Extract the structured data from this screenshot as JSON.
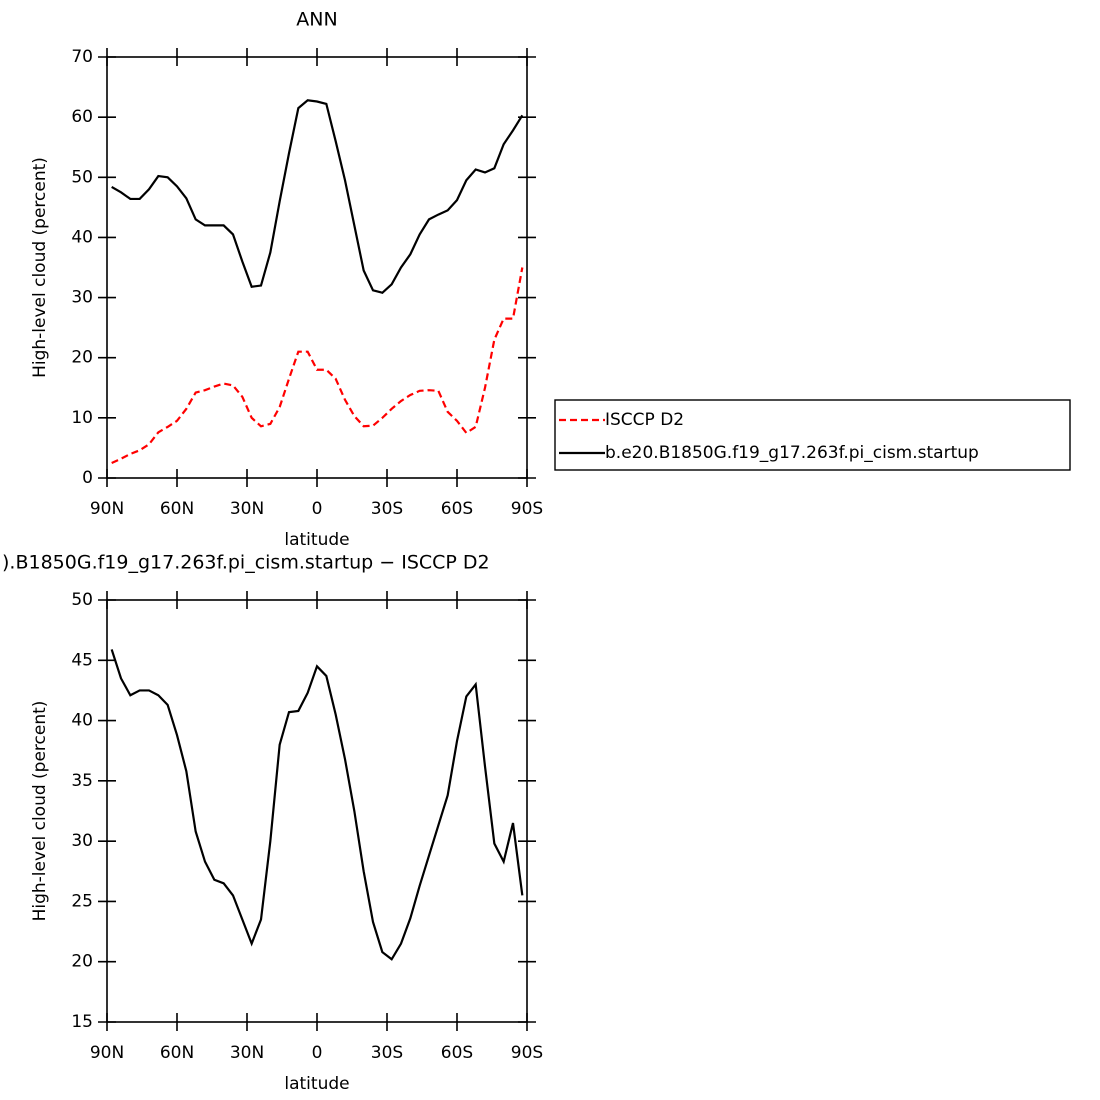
{
  "chart_data": [
    {
      "type": "line",
      "title": "ANN",
      "xlabel": "latitude",
      "ylabel": "High-level cloud (percent)",
      "x": [
        88,
        84,
        80,
        76,
        72,
        68,
        64,
        60,
        56,
        52,
        48,
        44,
        40,
        36,
        32,
        28,
        24,
        20,
        16,
        12,
        8,
        4,
        0,
        -4,
        -8,
        -12,
        -16,
        -20,
        -24,
        -28,
        -32,
        -36,
        -40,
        -44,
        -48,
        -52,
        -56,
        -60,
        -64,
        -68,
        -72,
        -76,
        -80,
        -84,
        -88
      ],
      "series": [
        {
          "name": "ISCCP D2",
          "color": "#ff0000",
          "dash": "dashed",
          "values": [
            2.5,
            3.2,
            4.0,
            4.6,
            5.6,
            7.6,
            8.5,
            9.5,
            11.5,
            14.2,
            14.6,
            15.2,
            15.7,
            15.4,
            13.5,
            10.0,
            8.6,
            9.0,
            11.8,
            16.5,
            21.0,
            21.0,
            18.0,
            18.0,
            16.5,
            13.0,
            10.3,
            8.6,
            8.7,
            10.0,
            11.5,
            12.8,
            13.8,
            14.5,
            14.6,
            14.5,
            11.0,
            9.5,
            7.5,
            8.5,
            15.0,
            23.0,
            26.5,
            26.5,
            35.0
          ]
        },
        {
          "name": "b.e20.B1850G.f19_g17.263f.pi_cism.startup",
          "color": "#000000",
          "dash": "solid",
          "values": [
            48.4,
            47.5,
            46.4,
            46.4,
            48.0,
            50.2,
            50.0,
            48.5,
            46.5,
            43.0,
            42.0,
            42.0,
            42.0,
            40.5,
            36.0,
            31.8,
            32.0,
            37.5,
            46.0,
            54.0,
            61.5,
            62.8,
            62.6,
            62.2,
            56.0,
            49.5,
            42.0,
            34.5,
            31.2,
            30.8,
            32.2,
            35.0,
            37.2,
            40.5,
            43.0,
            43.8,
            44.5,
            46.2,
            49.5,
            51.3,
            50.8,
            51.5,
            55.5,
            57.8,
            60.3
          ]
        }
      ],
      "xlim": [
        90,
        -90
      ],
      "xticks": [
        {
          "value": 90,
          "label": "90N"
        },
        {
          "value": 60,
          "label": "60N"
        },
        {
          "value": 30,
          "label": "30N"
        },
        0,
        {
          "value": -30,
          "label": "30S"
        },
        {
          "value": -60,
          "label": "60S"
        },
        {
          "value": -90,
          "label": "90S"
        }
      ],
      "ylim": [
        0,
        70
      ],
      "yticks": [
        0,
        10,
        20,
        30,
        40,
        50,
        60,
        70
      ],
      "legend": "right"
    },
    {
      "type": "line",
      "title": ").B1850G.f19_g17.263f.pi_cism.startup − ISCCP D2",
      "xlabel": "latitude",
      "ylabel": "High-level cloud (percent)",
      "x": [
        88,
        84,
        80,
        76,
        72,
        68,
        64,
        60,
        56,
        52,
        48,
        44,
        40,
        36,
        32,
        28,
        24,
        20,
        16,
        12,
        8,
        4,
        0,
        -4,
        -8,
        -12,
        -16,
        -20,
        -24,
        -28,
        -32,
        -36,
        -40,
        -44,
        -48,
        -52,
        -56,
        -60,
        -64,
        -68,
        -72,
        -76,
        -80,
        -84,
        -88
      ],
      "series": [
        {
          "color": "#000000",
          "dash": "solid",
          "values": [
            45.9,
            43.5,
            42.1,
            42.5,
            42.5,
            42.1,
            41.3,
            38.8,
            35.8,
            30.8,
            28.3,
            26.8,
            26.5,
            25.5,
            23.5,
            21.5,
            23.5,
            30.0,
            38.0,
            40.7,
            40.8,
            42.3,
            44.5,
            43.7,
            40.5,
            36.8,
            32.5,
            27.5,
            23.3,
            20.8,
            20.2,
            21.5,
            23.6,
            26.3,
            28.8,
            31.3,
            33.8,
            38.3,
            42.0,
            43.0,
            36.2,
            29.8,
            28.3,
            31.5,
            25.5
          ]
        }
      ],
      "xlim": [
        90,
        -90
      ],
      "xticks": [
        {
          "value": 90,
          "label": "90N"
        },
        {
          "value": 60,
          "label": "60N"
        },
        {
          "value": 30,
          "label": "30N"
        },
        0,
        {
          "value": -30,
          "label": "30S"
        },
        {
          "value": -60,
          "label": "60S"
        },
        {
          "value": -90,
          "label": "90S"
        }
      ],
      "ylim": [
        15,
        50
      ],
      "yticks": [
        15,
        20,
        25,
        30,
        35,
        40,
        45,
        50
      ]
    }
  ]
}
